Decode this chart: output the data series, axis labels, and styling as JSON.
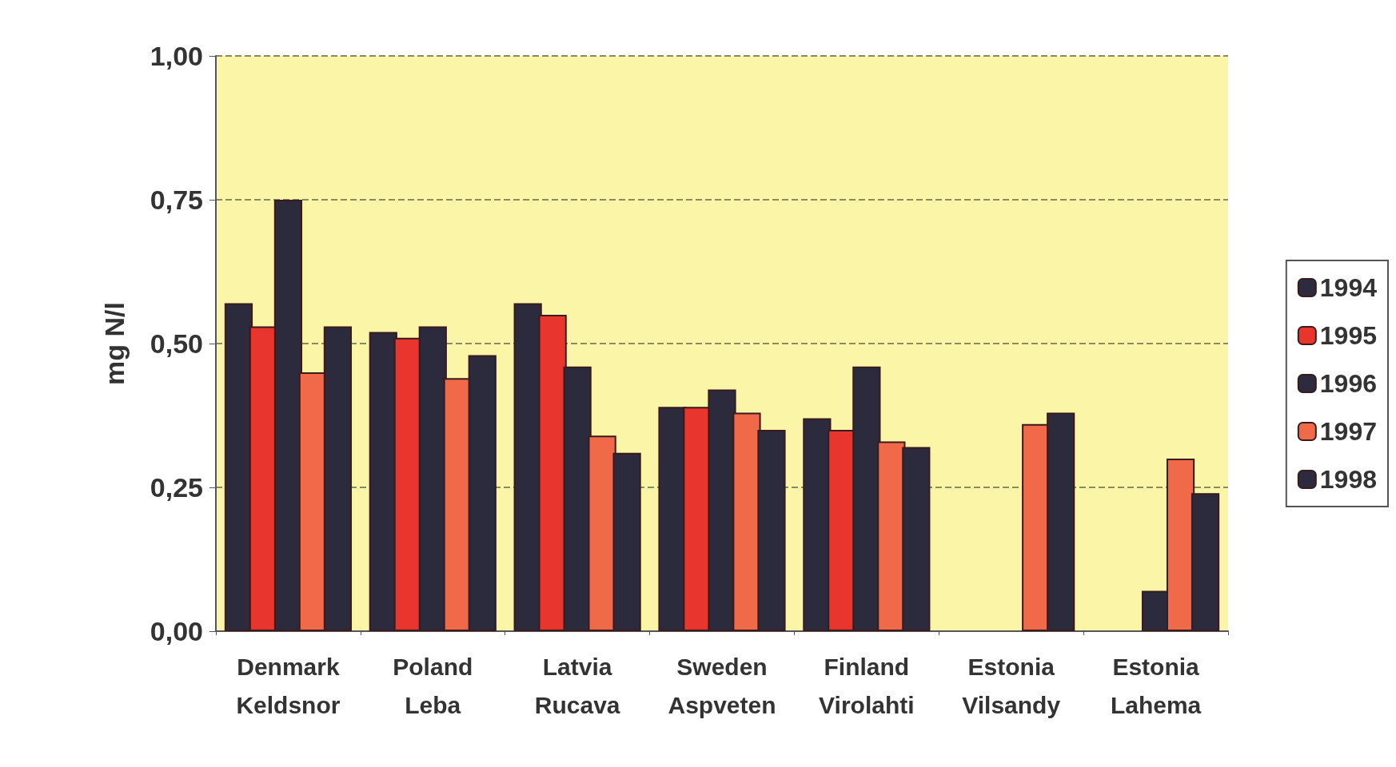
{
  "chart_data": {
    "type": "bar",
    "ylabel": "mg N/l",
    "categories": [
      "Denmark\nKeldsnor",
      "Poland\nLeba",
      "Latvia\nRucava",
      "Sweden\nAspveten",
      "Finland\nVirolahti",
      "Estonia\nVilsandy",
      "Estonia\nLahema"
    ],
    "series": [
      {
        "name": "1994",
        "color": "#2b2b3d",
        "values": [
          0.57,
          0.52,
          0.57,
          0.39,
          0.37,
          null,
          null
        ]
      },
      {
        "name": "1995",
        "color": "#e8362e",
        "values": [
          0.53,
          0.51,
          0.55,
          0.39,
          0.35,
          null,
          null
        ]
      },
      {
        "name": "1996",
        "color": "#2b2b3d",
        "values": [
          0.75,
          0.53,
          0.46,
          0.42,
          0.46,
          null,
          0.07
        ]
      },
      {
        "name": "1997",
        "color": "#f06a4a",
        "values": [
          0.45,
          0.44,
          0.34,
          0.38,
          0.33,
          0.36,
          0.3
        ]
      },
      {
        "name": "1998",
        "color": "#2b2b3d",
        "values": [
          0.53,
          0.48,
          0.31,
          0.35,
          0.32,
          0.38,
          0.24
        ]
      }
    ],
    "ylim": [
      0,
      1
    ],
    "yticks": [
      {
        "value": 0,
        "label": "0,00"
      },
      {
        "value": 0.25,
        "label": "0,25"
      },
      {
        "value": 0.5,
        "label": "0,50"
      },
      {
        "value": 0.75,
        "label": "0,75"
      },
      {
        "value": 1,
        "label": "1,00"
      }
    ],
    "grid": "y",
    "legend": "right"
  }
}
